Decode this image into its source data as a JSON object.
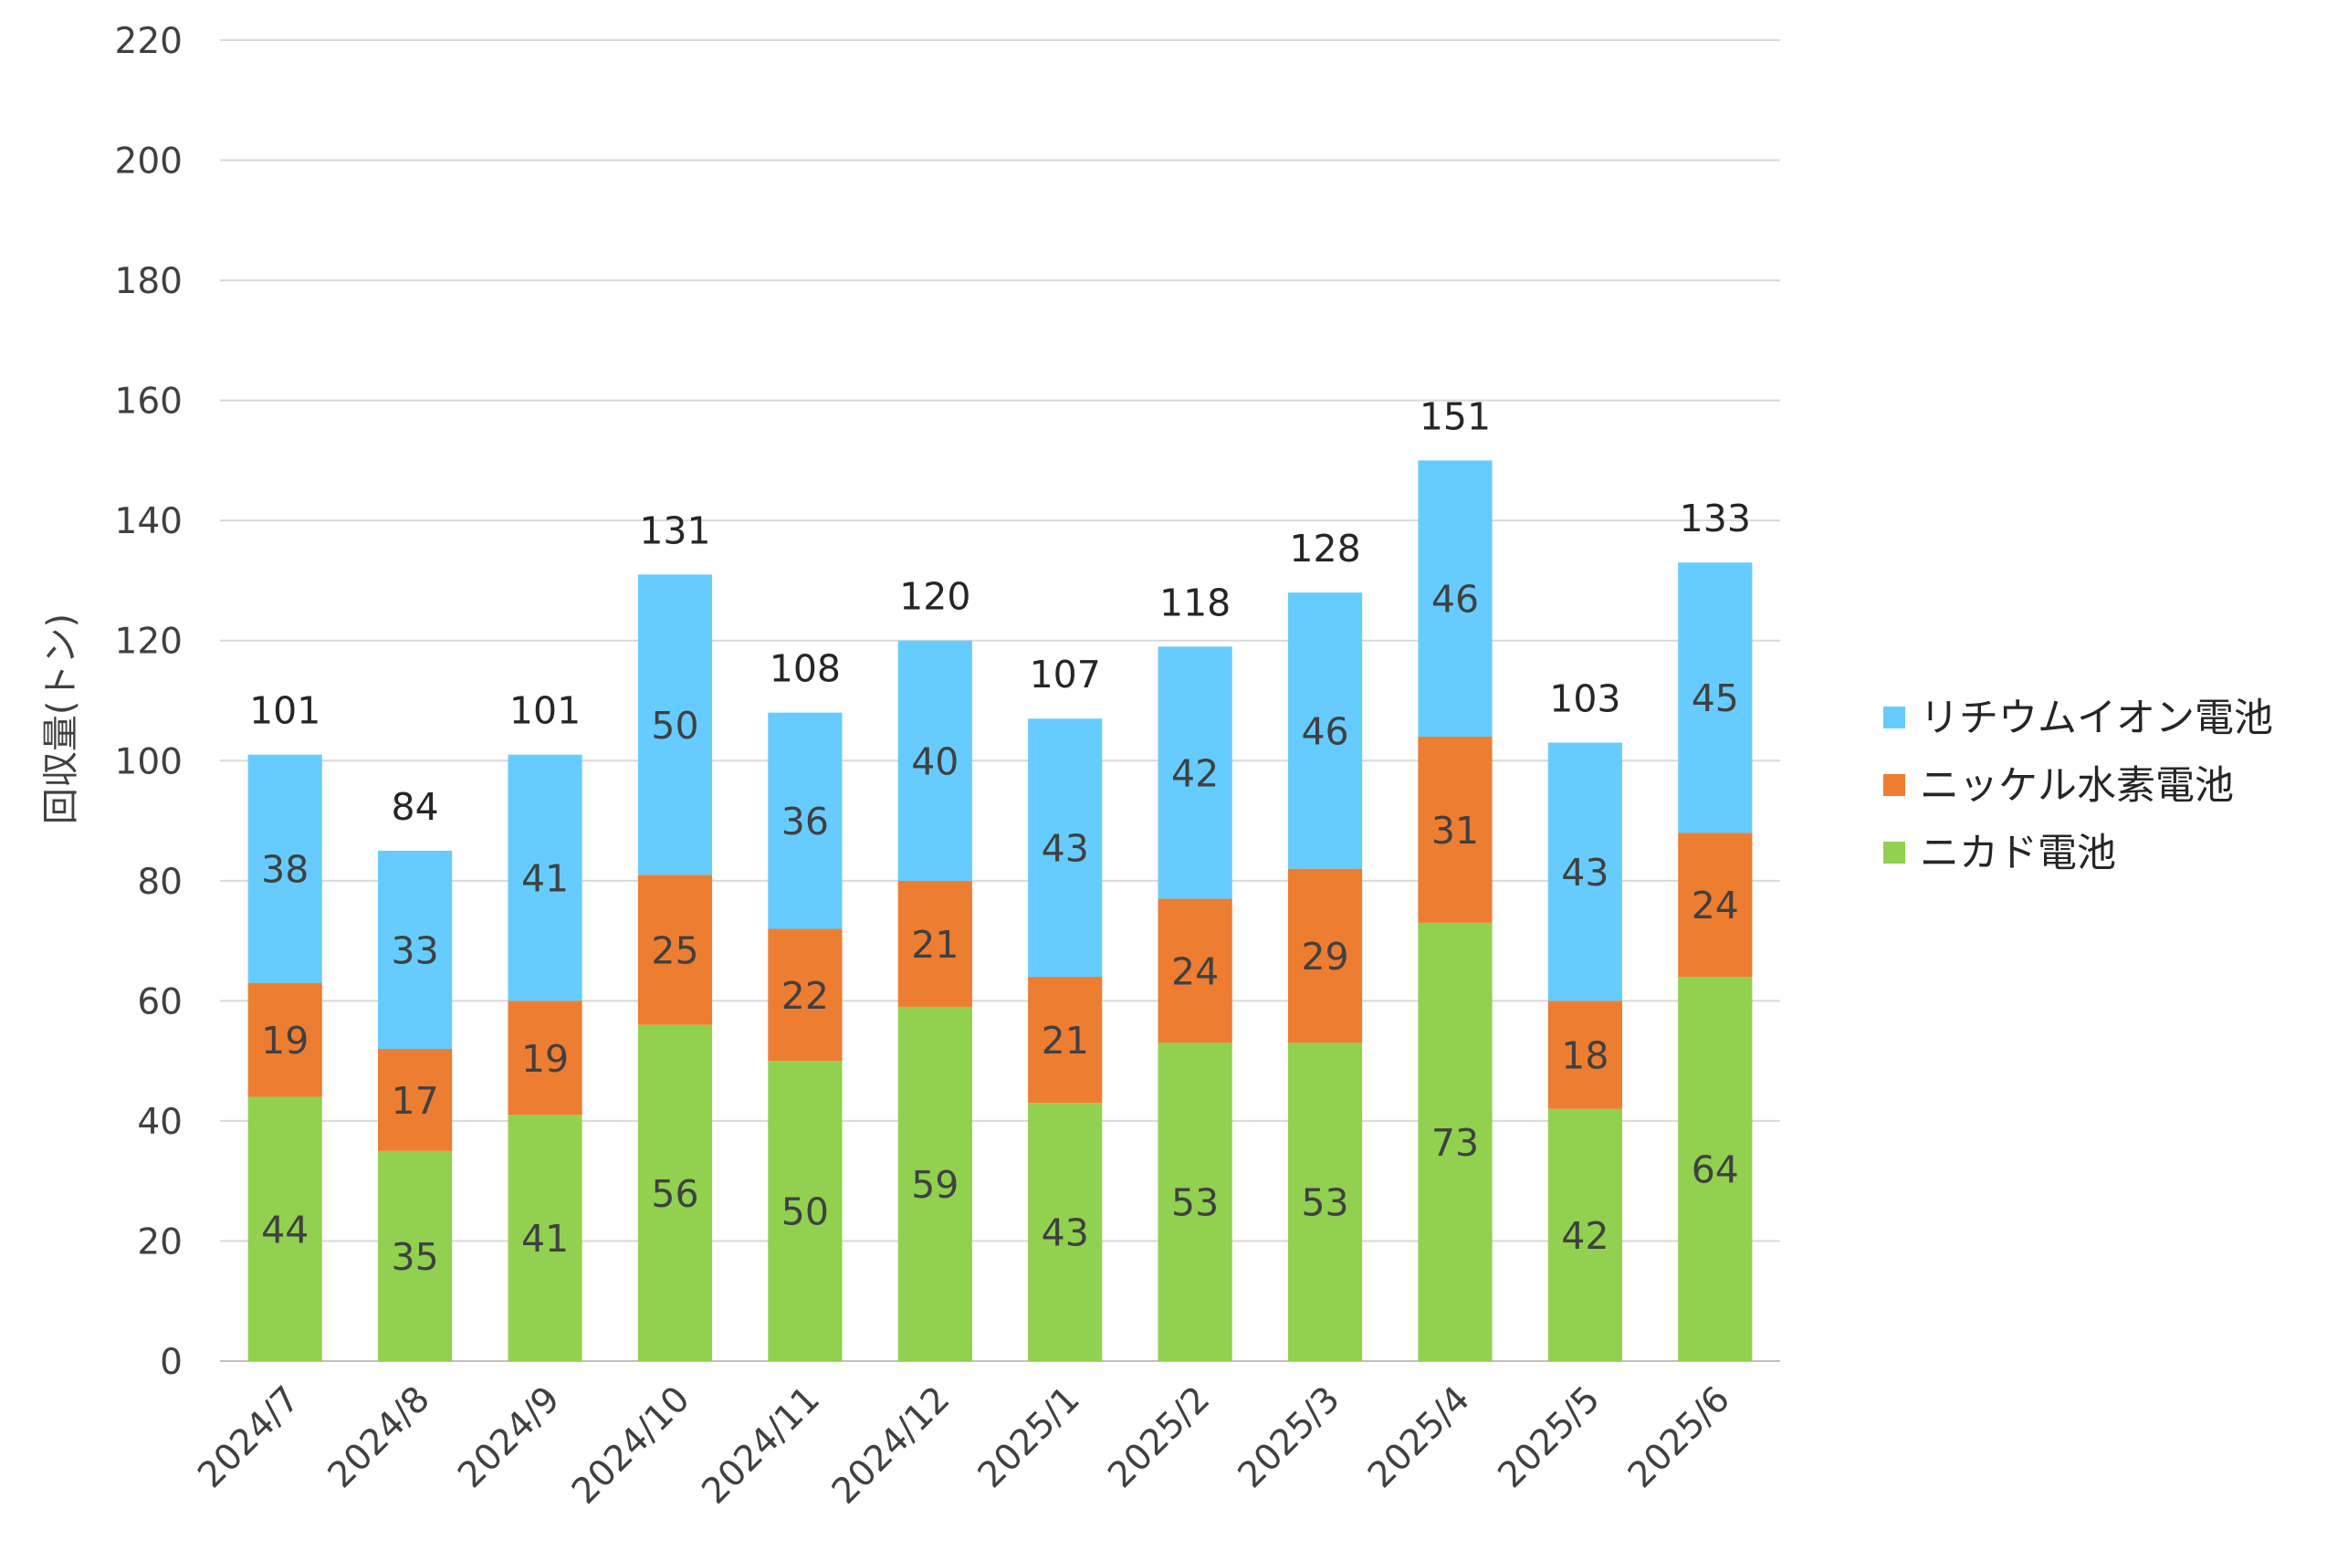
{
  "chart_data": {
    "type": "bar",
    "stacked": true,
    "categories": [
      "2024/7",
      "2024/8",
      "2024/9",
      "2024/10",
      "2024/11",
      "2024/12",
      "2025/1",
      "2025/2",
      "2025/3",
      "2025/4",
      "2025/5",
      "2025/6"
    ],
    "series": [
      {
        "name": "ニカド電池",
        "color": "#92d050",
        "values": [
          44,
          35,
          41,
          56,
          50,
          59,
          43,
          53,
          53,
          73,
          42,
          64
        ]
      },
      {
        "name": "ニッケル水素電池",
        "color": "#ed7d31",
        "values": [
          19,
          17,
          19,
          25,
          22,
          21,
          21,
          24,
          29,
          31,
          18,
          24
        ]
      },
      {
        "name": "リチウムイオン電池",
        "color": "#66ccff",
        "values": [
          38,
          33,
          41,
          50,
          36,
          40,
          43,
          42,
          46,
          46,
          43,
          45
        ]
      }
    ],
    "totals": [
      101,
      84,
      101,
      131,
      108,
      120,
      107,
      118,
      128,
      151,
      103,
      133
    ],
    "legend_order": [
      "リチウムイオン電池",
      "ニッケル水素電池",
      "ニカド電池"
    ],
    "ylabel": "回収量(トン)",
    "ylim": [
      0,
      220
    ],
    "yticks": [
      0,
      20,
      40,
      60,
      80,
      100,
      120,
      140,
      160,
      180,
      200,
      220
    ],
    "grid": true,
    "legend_position": "right",
    "gridline_color": "#d9d9d9"
  }
}
